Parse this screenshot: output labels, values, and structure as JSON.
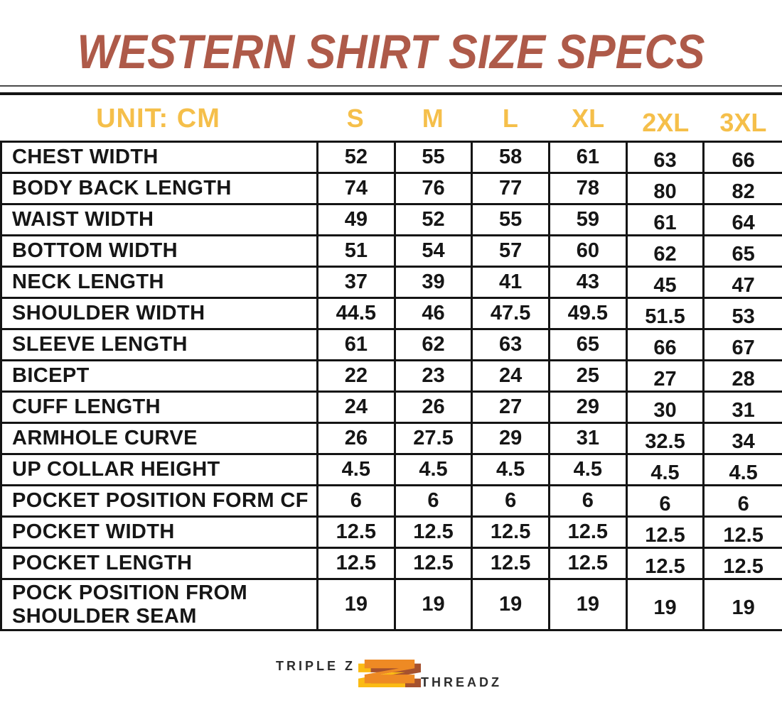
{
  "title": "WESTERN SHIRT SIZE SPECS",
  "table": {
    "unit_label": "UNIT: CM",
    "size_headers": [
      "S",
      "M",
      "L",
      "XL",
      "2XL",
      "3XL"
    ],
    "rows": [
      {
        "label": "CHEST WIDTH",
        "values": [
          "52",
          "55",
          "58",
          "61",
          "63",
          "66"
        ]
      },
      {
        "label": "BODY BACK LENGTH",
        "values": [
          "74",
          "76",
          "77",
          "78",
          "80",
          "82"
        ]
      },
      {
        "label": "WAIST WIDTH",
        "values": [
          "49",
          "52",
          "55",
          "59",
          "61",
          "64"
        ]
      },
      {
        "label": "BOTTOM WIDTH",
        "values": [
          "51",
          "54",
          "57",
          "60",
          "62",
          "65"
        ]
      },
      {
        "label": "NECK LENGTH",
        "values": [
          "37",
          "39",
          "41",
          "43",
          "45",
          "47"
        ]
      },
      {
        "label": "SHOULDER WIDTH",
        "values": [
          "44.5",
          "46",
          "47.5",
          "49.5",
          "51.5",
          "53"
        ]
      },
      {
        "label": "SLEEVE LENGTH",
        "values": [
          "61",
          "62",
          "63",
          "65",
          "66",
          "67"
        ]
      },
      {
        "label": "BICEPT",
        "values": [
          "22",
          "23",
          "24",
          "25",
          "27",
          "28"
        ]
      },
      {
        "label": "CUFF LENGTH",
        "values": [
          "24",
          "26",
          "27",
          "29",
          "30",
          "31"
        ]
      },
      {
        "label": "ARMHOLE CURVE",
        "values": [
          "26",
          "27.5",
          "29",
          "31",
          "32.5",
          "34"
        ]
      },
      {
        "label": "UP COLLAR HEIGHT",
        "values": [
          "4.5",
          "4.5",
          "4.5",
          "4.5",
          "4.5",
          "4.5"
        ]
      },
      {
        "label": "POCKET POSITION FORM CF",
        "values": [
          "6",
          "6",
          "6",
          "6",
          "6",
          "6"
        ]
      },
      {
        "label": "POCKET WIDTH",
        "values": [
          "12.5",
          "12.5",
          "12.5",
          "12.5",
          "12.5",
          "12.5"
        ]
      },
      {
        "label": "POCKET LENGTH",
        "values": [
          "12.5",
          "12.5",
          "12.5",
          "12.5",
          "12.5",
          "12.5"
        ]
      },
      {
        "label": "POCK POSITION FROM",
        "label2": "SHOULDER SEAM",
        "values": [
          "19",
          "19",
          "19",
          "19",
          "19",
          "19"
        ]
      }
    ]
  },
  "footer": {
    "brand_left": "TRIPLE Z",
    "brand_right": "THREADZ",
    "logo_icon": "triple-z-zigzag"
  },
  "colors": {
    "title_rust": "#AE5A49",
    "header_gold": "#F5BF4A",
    "text_black": "#161616",
    "border_black": "#141414",
    "logo_orange": "#EE8A24",
    "logo_brown": "#A5512E",
    "logo_yellow": "#FBBB14"
  }
}
